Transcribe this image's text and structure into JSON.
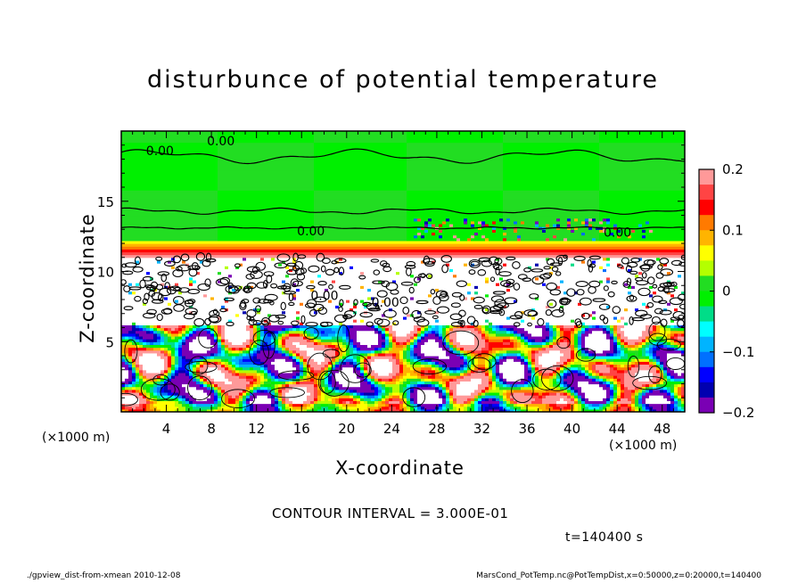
{
  "chart_data": {
    "type": "heatmap",
    "title": "disturbunce of potential temperature",
    "xlabel": "X-coordinate",
    "ylabel": "Z-coordinate",
    "x_unit_label": "(×1000 m)",
    "xlim": [
      0,
      50
    ],
    "ylim": [
      0,
      20
    ],
    "x_ticks": [
      4,
      8,
      12,
      16,
      20,
      24,
      28,
      32,
      36,
      40,
      44,
      48
    ],
    "y_ticks": [
      5,
      10,
      15
    ],
    "colorbar": {
      "range": [
        -0.2,
        0.2
      ],
      "tick_labels": [
        "0.2",
        "0.1",
        "0",
        "−0.1",
        "−0.2"
      ],
      "tick_values": [
        0.2,
        0.1,
        0,
        -0.1,
        -0.2
      ],
      "colors": [
        "#ff9999",
        "#ff4444",
        "#ff0000",
        "#ff7a00",
        "#ffb400",
        "#ffff00",
        "#b4ff00",
        "#22dd22",
        "#00f000",
        "#00dd88",
        "#00ffff",
        "#00b4ff",
        "#0070ff",
        "#0000ff",
        "#0000b0",
        "#7a00b4"
      ]
    },
    "contour_labels": [
      "0.00",
      "0.00",
      "0.00",
      "0.00",
      "0.00",
      "0.00"
    ],
    "contour_interval": "CONTOUR INTERVAL = 3.000E-01",
    "time": "t=140400 s",
    "footer_left": "./gpview_dist-from-xmean  2010-12-08",
    "footer_right": "MarsCond_PotTemp.nc@PotTempDist,x=0:50000,z=0:20000,t=140400"
  }
}
